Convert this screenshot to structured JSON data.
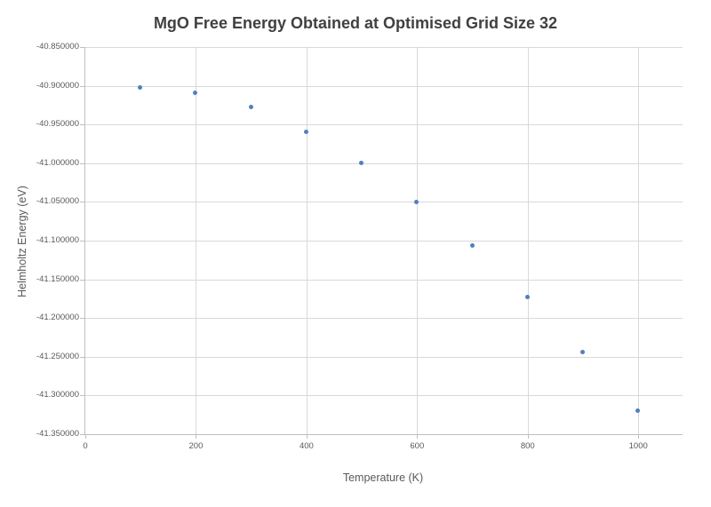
{
  "title": "MgO Free Energy Obtained at Optimised Grid Size 32",
  "chart_data": {
    "type": "scatter",
    "title": "MgO Free Energy Obtained at Optimised Grid Size 32",
    "xlabel": "Temperature (K)",
    "ylabel": "Helmholtz Energy (eV)",
    "x": [
      100,
      200,
      300,
      400,
      500,
      600,
      700,
      800,
      900,
      1000
    ],
    "y": [
      -40.903,
      -40.91,
      -40.928,
      -40.96,
      -41.0,
      -41.051,
      -41.107,
      -41.173,
      -41.244,
      -41.32
    ],
    "xlim": [
      0,
      1080
    ],
    "ylim": [
      -41.35,
      -40.85
    ],
    "x_ticks": [
      0,
      200,
      400,
      600,
      800,
      1000
    ],
    "x_tick_labels": [
      "0",
      "200",
      "400",
      "600",
      "800",
      "1000"
    ],
    "y_ticks": [
      -40.85,
      -40.9,
      -40.95,
      -41.0,
      -41.05,
      -41.1,
      -41.15,
      -41.2,
      -41.25,
      -41.3,
      -41.35
    ],
    "y_tick_labels": [
      "-40.850000",
      "-40.900000",
      "-40.950000",
      "-41.000000",
      "-41.050000",
      "-41.100000",
      "-41.150000",
      "-41.200000",
      "-41.250000",
      "-41.300000",
      "-41.350000"
    ],
    "grid": true,
    "legend": false,
    "marker_color": "#4f81bd",
    "gridline_color": "#d9d9d9",
    "axis_line_color": "#bfbfbf",
    "title_color": "#404040",
    "label_color": "#595959"
  }
}
